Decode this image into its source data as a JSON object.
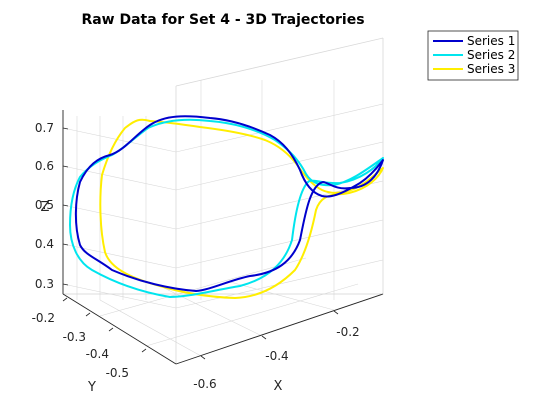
{
  "chart_data": {
    "type": "line",
    "projection": "3d",
    "title": "Raw Data for Set 4 - 3D Trajectories",
    "xlabel": "X",
    "ylabel": "Y",
    "zlabel": "Z",
    "xlim": [
      -0.65,
      -0.1
    ],
    "ylim": [
      -0.55,
      -0.2
    ],
    "zlim": [
      0.27,
      0.73
    ],
    "xticks": [
      "-0.6",
      "-0.4",
      "-0.2"
    ],
    "yticks": [
      "-0.2",
      "-0.3",
      "-0.4",
      "-0.5"
    ],
    "zticks": [
      "0.3",
      "0.4",
      "0.5",
      "0.6",
      "0.7"
    ],
    "grid": true,
    "legend_position": "outside-top-right",
    "series": [
      {
        "name": "Series 1",
        "color": "#0000cd"
      },
      {
        "name": "Series 2",
        "color": "#00e5ee"
      },
      {
        "name": "Series 3",
        "color": "#ffee00"
      }
    ]
  }
}
